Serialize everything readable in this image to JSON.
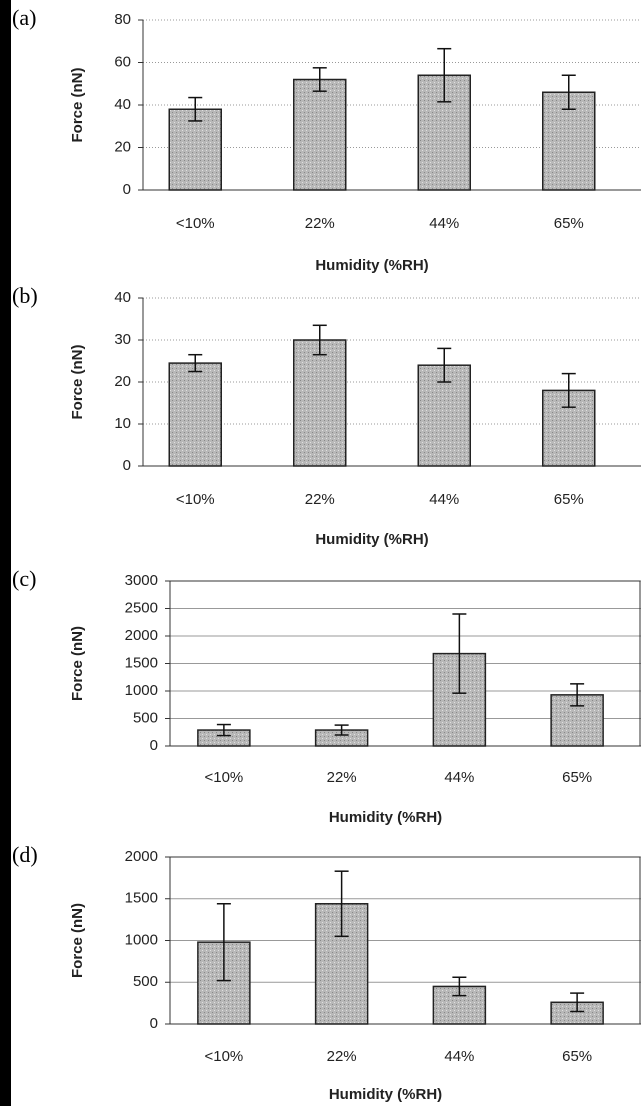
{
  "chart_data": [
    {
      "type": "bar",
      "label": "(a)",
      "categories": [
        "<10%",
        "22%",
        "44%",
        "65%"
      ],
      "values": [
        38,
        52,
        54,
        46
      ],
      "errors": [
        5.5,
        5.5,
        12.5,
        8
      ],
      "color": "#b4b4b4",
      "ylim": [
        0,
        80
      ],
      "yticks": [
        0,
        20,
        40,
        60,
        80
      ],
      "x_label": "Humidity (%RH)",
      "y_label": "Force (nN)",
      "grid": true,
      "frame": false
    },
    {
      "type": "bar",
      "label": "(b)",
      "categories": [
        "<10%",
        "22%",
        "44%",
        "65%"
      ],
      "values": [
        24.5,
        30,
        24,
        18
      ],
      "errors": [
        2,
        3.5,
        4,
        4
      ],
      "color": "#b4b4b4",
      "ylim": [
        0,
        40
      ],
      "yticks": [
        0,
        10,
        20,
        30,
        40
      ],
      "x_label": "Humidity (%RH)",
      "y_label": "Force (nN)",
      "grid": true,
      "frame": false
    },
    {
      "type": "bar",
      "label": "(c)",
      "categories": [
        "<10%",
        "22%",
        "44%",
        "65%"
      ],
      "values": [
        290,
        290,
        1680,
        930
      ],
      "errors": [
        100,
        90,
        720,
        200
      ],
      "color": "#b4b4b4",
      "ylim": [
        0,
        3000
      ],
      "yticks": [
        0,
        500,
        1000,
        1500,
        2000,
        2500,
        3000
      ],
      "x_label": "Humidity (%RH)",
      "y_label": "Force (nN)",
      "grid": true,
      "frame": true
    },
    {
      "type": "bar",
      "label": "(d)",
      "categories": [
        "<10%",
        "22%",
        "44%",
        "65%"
      ],
      "values": [
        980,
        1440,
        450,
        260
      ],
      "errors": [
        460,
        390,
        110,
        110
      ],
      "color": "#b4b4b4",
      "ylim": [
        0,
        2000
      ],
      "yticks": [
        0,
        500,
        1000,
        1500,
        2000
      ],
      "x_label": "Humidity (%RH)",
      "y_label": "Force (nN)",
      "grid": true,
      "frame": true
    }
  ]
}
